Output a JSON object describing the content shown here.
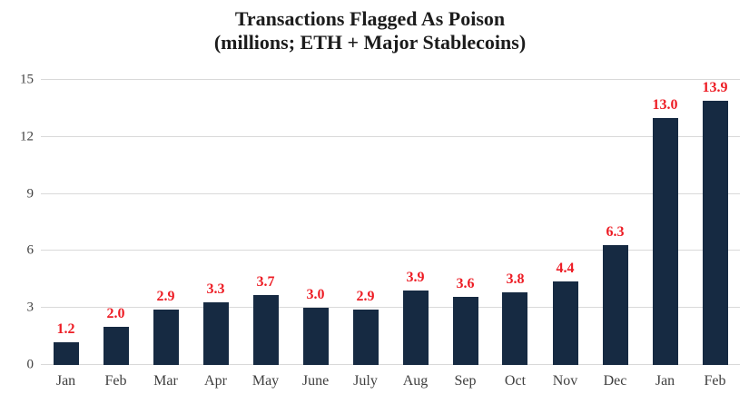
{
  "chart_data": {
    "type": "bar",
    "title": "Transactions Flagged As Poison",
    "subtitle": "(millions; ETH + Major Stablecoins)",
    "xlabel": "",
    "ylabel": "",
    "categories": [
      "Jan",
      "Feb",
      "Mar",
      "Apr",
      "May",
      "June",
      "July",
      "Aug",
      "Sep",
      "Oct",
      "Nov",
      "Dec",
      "Jan",
      "Feb"
    ],
    "values": [
      1.2,
      2.0,
      2.9,
      3.3,
      3.7,
      3.0,
      2.9,
      3.9,
      3.6,
      3.8,
      4.4,
      6.3,
      13.0,
      13.9
    ],
    "value_labels": [
      "1.2",
      "2.0",
      "2.9",
      "3.3",
      "3.7",
      "3.0",
      "2.9",
      "3.9",
      "3.6",
      "3.8",
      "4.4",
      "6.3",
      "13.0",
      "13.9"
    ],
    "ylim": [
      0,
      15
    ],
    "yticks": [
      0,
      3,
      6,
      9,
      12,
      15
    ],
    "grid": true,
    "legend_position": "none",
    "colors": {
      "bar": "#162a42",
      "value_label": "#ed1c24",
      "gridline": "#d9d9d9",
      "axis_text": "#3f3f3f",
      "title_text": "#1c1c1c",
      "background": "#ffffff"
    }
  }
}
